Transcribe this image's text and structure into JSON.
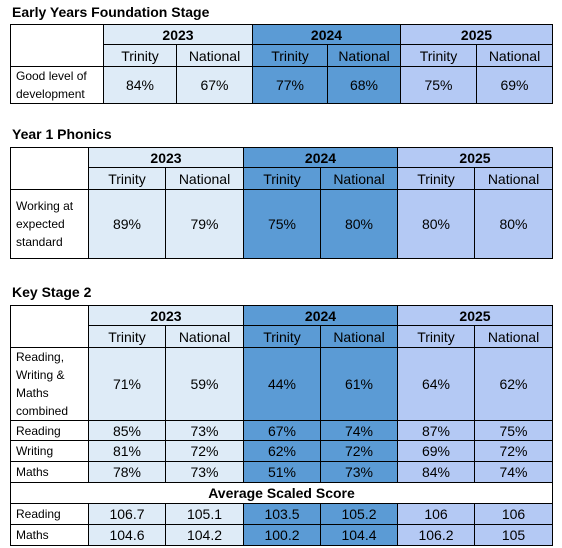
{
  "sections": [
    {
      "title": "Early Years Foundation Stage",
      "years": [
        "2023",
        "2024",
        "2025"
      ],
      "subheaders": [
        "Trinity",
        "National",
        "Trinity",
        "National",
        "Trinity",
        "National"
      ],
      "rows": [
        {
          "label": "Good level of development",
          "values": [
            "84%",
            "67%",
            "77%",
            "68%",
            "75%",
            "69%"
          ]
        }
      ]
    },
    {
      "title": "Year 1 Phonics",
      "years": [
        "2023",
        "2024",
        "2025"
      ],
      "subheaders": [
        "Trinity",
        "National",
        "Trinity",
        "National",
        "Trinity",
        "National"
      ],
      "rows": [
        {
          "label": "Working at expected standard",
          "values": [
            "89%",
            "79%",
            "75%",
            "80%",
            "80%",
            "80%"
          ]
        }
      ]
    },
    {
      "title": "Key Stage 2",
      "years": [
        "2023",
        "2024",
        "2025"
      ],
      "subheaders": [
        "Trinity",
        "National",
        "Trinity",
        "National",
        "Trinity",
        "National"
      ],
      "rows": [
        {
          "label": "Reading, Writing & Maths combined",
          "values": [
            "71%",
            "59%",
            "44%",
            "61%",
            "64%",
            "62%"
          ]
        },
        {
          "label": "Reading",
          "values": [
            "85%",
            "73%",
            "67%",
            "74%",
            "87%",
            "75%"
          ]
        },
        {
          "label": "Writing",
          "values": [
            "81%",
            "72%",
            "62%",
            "72%",
            "69%",
            "72%"
          ]
        },
        {
          "label": "Maths",
          "values": [
            "78%",
            "73%",
            "51%",
            "73%",
            "84%",
            "74%"
          ]
        }
      ],
      "subtitle": "Average Scaled Score",
      "rows2": [
        {
          "label": "Reading",
          "values": [
            "106.7",
            "105.1",
            "103.5",
            "105.2",
            "106",
            "106"
          ]
        },
        {
          "label": "Maths",
          "values": [
            "104.6",
            "104.2",
            "100.2",
            "104.4",
            "106.2",
            "105"
          ]
        }
      ]
    }
  ]
}
